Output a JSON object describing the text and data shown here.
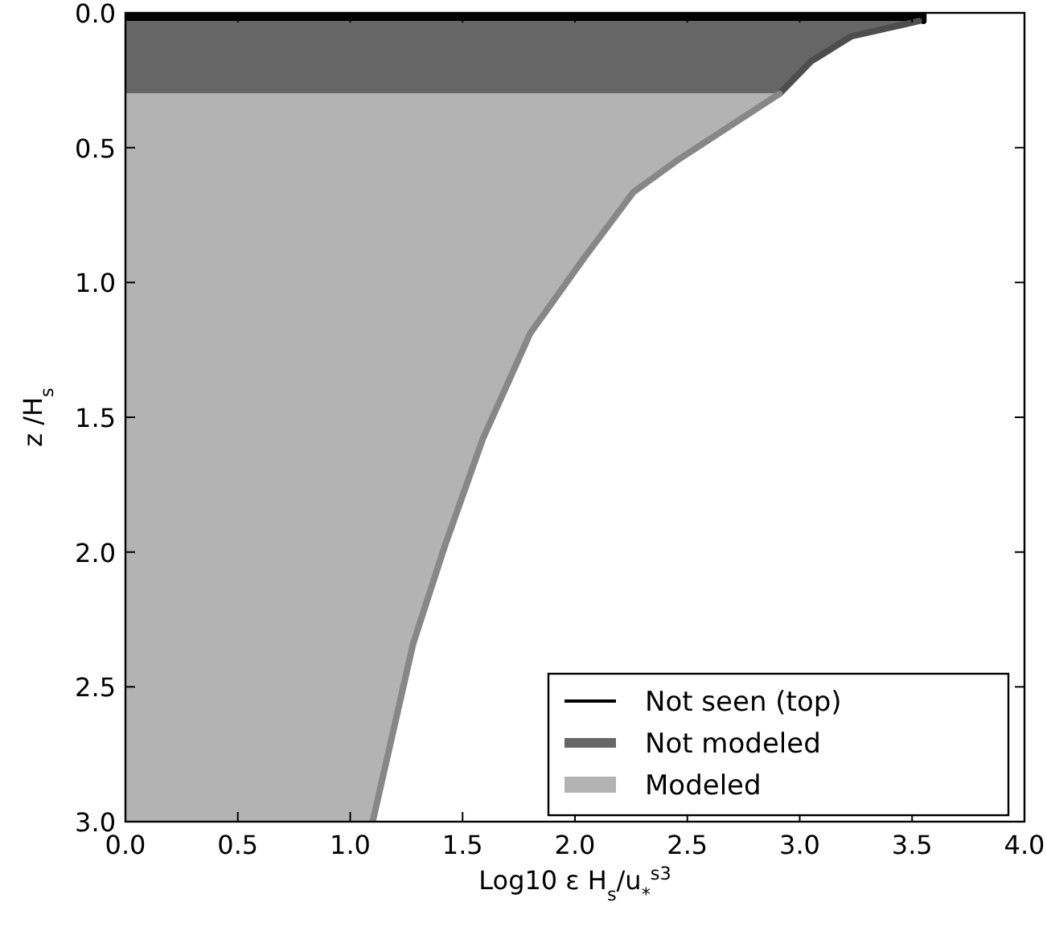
{
  "chart_data": {
    "type": "area",
    "orientation": "horizontal",
    "xlabel": "Log10 ε H$_{s}$/u$_{*}$$^{s3}$",
    "ylabel": "z /H$_{s}$",
    "xlim": [
      0,
      4
    ],
    "ylim": [
      3,
      0
    ],
    "xticks": [
      {
        "value": 0,
        "label": "0.0"
      },
      {
        "value": 0.5,
        "label": "0.5"
      },
      {
        "value": 1,
        "label": "1.0"
      },
      {
        "value": 1.5,
        "label": "1.5"
      },
      {
        "value": 2,
        "label": "2.0"
      },
      {
        "value": 2.5,
        "label": "2.5"
      },
      {
        "value": 3,
        "label": "3.0"
      },
      {
        "value": 3.5,
        "label": "3.5"
      },
      {
        "value": 4,
        "label": "4.0"
      }
    ],
    "yticks": [
      {
        "value": 0,
        "label": "0.0"
      },
      {
        "value": 0.5,
        "label": "0.5"
      },
      {
        "value": 1,
        "label": "1.0"
      },
      {
        "value": 1.5,
        "label": "1.5"
      },
      {
        "value": 2,
        "label": "2.0"
      },
      {
        "value": 2.5,
        "label": "2.5"
      },
      {
        "value": 3,
        "label": "3.0"
      }
    ],
    "legend": "bottom right",
    "grid": false,
    "series": [
      {
        "name": "Not seen (top)",
        "color": "#000000",
        "x": [
          0,
          0.03
        ],
        "values": [
          3.55,
          3.55
        ]
      },
      {
        "name": "Not modeled",
        "color": "#666666",
        "x": [
          0.03,
          0.04,
          0.087,
          0.18,
          0.3
        ],
        "values": [
          3.53,
          3.48,
          3.23,
          3.05,
          2.91
        ]
      },
      {
        "name": "Modeled",
        "color": "#b3b3b3",
        "x": [
          0.3,
          0.55,
          0.665,
          0.91,
          1.19,
          1.58,
          1.98,
          2.34,
          3.0
        ],
        "values": [
          2.91,
          2.45,
          2.26,
          2.04,
          1.8,
          1.59,
          1.42,
          1.28,
          1.1
        ]
      }
    ]
  }
}
